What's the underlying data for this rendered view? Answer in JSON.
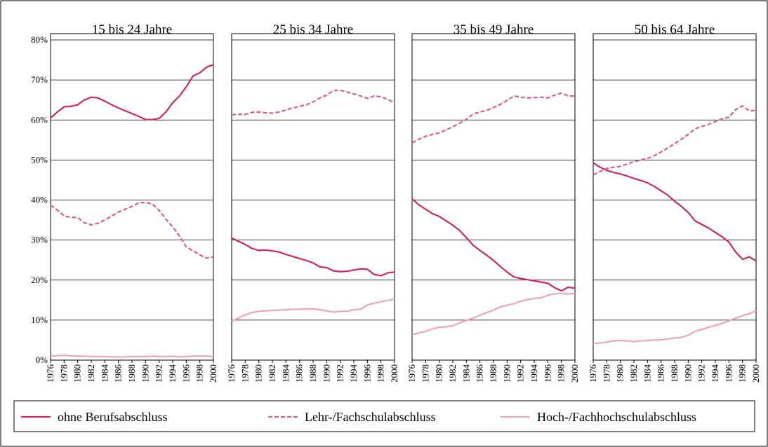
{
  "chart_data": [
    {
      "type": "line",
      "title": "15 bis 24 Jahre",
      "x": [
        1976,
        1977,
        1978,
        1979,
        1980,
        1981,
        1982,
        1983,
        1984,
        1985,
        1986,
        1987,
        1988,
        1989,
        1990,
        1991,
        1992,
        1993,
        1994,
        1995,
        1996,
        1997,
        1998,
        1999,
        2000
      ],
      "xlim": [
        1976,
        2000
      ],
      "xticks": [
        1976,
        1978,
        1980,
        1982,
        1984,
        1986,
        1988,
        1990,
        1992,
        1994,
        1996,
        1998,
        2000
      ],
      "ylim": [
        0,
        80
      ],
      "yticks": [
        {
          "value": 0,
          "label": "0%"
        },
        {
          "value": 10,
          "label": "10%"
        },
        {
          "value": 20,
          "label": "20%"
        },
        {
          "value": 30,
          "label": "30%"
        },
        {
          "value": 40,
          "label": "40%"
        },
        {
          "value": 50,
          "label": "50%"
        },
        {
          "value": 60,
          "label": "60%"
        },
        {
          "value": 70,
          "label": "70%"
        },
        {
          "value": 80,
          "label": "80%"
        }
      ],
      "grid": true,
      "legend": "bottom",
      "series": [
        {
          "name": "ohne Berufsabschluss",
          "color": "#c8286a",
          "dash": false,
          "values": [
            60.5,
            62,
            63.3,
            63.4,
            63.8,
            65,
            65.7,
            65.5,
            64.7,
            63.8,
            63,
            62.3,
            61.6,
            60.9,
            60.1,
            60.1,
            60.4,
            62,
            64.3,
            66,
            68.3,
            71,
            71.8,
            73.2,
            73.8
          ]
        },
        {
          "name": "Lehr-/Fachschulabschluss",
          "color": "#d55f92",
          "dash": true,
          "values": [
            38.7,
            37.5,
            36,
            35.7,
            35.6,
            34.3,
            33.8,
            34.2,
            35,
            36,
            37,
            37.7,
            38.4,
            39.3,
            39.4,
            39,
            37.4,
            35.2,
            33.3,
            31,
            28.3,
            27.3,
            26.3,
            25.5,
            25.8
          ]
        },
        {
          "name": "Hoch-/Fachhochschulabschluss",
          "color": "#eea3c3",
          "dash": false,
          "values": [
            1.0,
            1.1,
            1.2,
            1.1,
            1.0,
            1.0,
            0.9,
            0.9,
            0.9,
            0.8,
            0.8,
            0.8,
            0.9,
            0.9,
            0.9,
            1.0,
            0.9,
            0.9,
            1.0,
            0.8,
            0.9,
            1.0,
            1.0,
            1.0,
            0.9
          ]
        }
      ]
    },
    {
      "type": "line",
      "title": "25 bis 34 Jahre",
      "x": [
        1976,
        1977,
        1978,
        1979,
        1980,
        1981,
        1982,
        1983,
        1984,
        1985,
        1986,
        1987,
        1988,
        1989,
        1990,
        1991,
        1992,
        1993,
        1994,
        1995,
        1996,
        1997,
        1998,
        1999,
        2000
      ],
      "xlim": [
        1976,
        2000
      ],
      "xticks": [
        1976,
        1978,
        1980,
        1982,
        1984,
        1986,
        1988,
        1990,
        1992,
        1994,
        1996,
        1998,
        2000
      ],
      "ylim": [
        0,
        80
      ],
      "series": [
        {
          "color": "#c8286a",
          "dash": false,
          "values": [
            30.5,
            29.7,
            28.9,
            27.9,
            27.4,
            27.5,
            27.3,
            27,
            26.4,
            25.9,
            25.4,
            24.9,
            24.3,
            23.3,
            23.1,
            22.3,
            22.1,
            22.2,
            22.5,
            22.8,
            22.7,
            21.4,
            21.1,
            21.8,
            22
          ]
        },
        {
          "color": "#d55f92",
          "dash": true,
          "values": [
            61.3,
            61.4,
            61.4,
            61.9,
            62,
            61.8,
            61.7,
            62,
            62.5,
            63,
            63.4,
            63.8,
            64.5,
            65.5,
            66.2,
            67.4,
            67.4,
            67,
            66.5,
            66,
            65.4,
            66,
            65.8,
            65.1,
            64.4
          ]
        },
        {
          "color": "#eea3c3",
          "dash": false,
          "values": [
            9.7,
            10.5,
            11.3,
            11.9,
            12.2,
            12.3,
            12.4,
            12.5,
            12.6,
            12.7,
            12.7,
            12.8,
            12.8,
            12.6,
            12.3,
            12,
            12.2,
            12.2,
            12.6,
            12.7,
            13.8,
            14.2,
            14.6,
            14.9,
            15.3
          ]
        }
      ]
    },
    {
      "type": "line",
      "title": "35 bis 49 Jahre",
      "x": [
        1976,
        1977,
        1978,
        1979,
        1980,
        1981,
        1982,
        1983,
        1984,
        1985,
        1986,
        1987,
        1988,
        1989,
        1990,
        1991,
        1992,
        1993,
        1994,
        1995,
        1996,
        1997,
        1998,
        1999,
        2000
      ],
      "xlim": [
        1976,
        2000
      ],
      "xticks": [
        1976,
        1978,
        1980,
        1982,
        1984,
        1986,
        1988,
        1990,
        1992,
        1994,
        1996,
        1998,
        2000
      ],
      "ylim": [
        0,
        80
      ],
      "series": [
        {
          "color": "#c8286a",
          "dash": false,
          "values": [
            40.3,
            38.8,
            37.7,
            36.6,
            35.9,
            34.8,
            33.7,
            32.4,
            30.6,
            28.7,
            27.4,
            26.2,
            24.9,
            23.4,
            22,
            20.8,
            20.4,
            20.1,
            19.8,
            19.5,
            19.2,
            18.1,
            17.3,
            18.2,
            18
          ]
        },
        {
          "color": "#d55f92",
          "dash": true,
          "values": [
            54.3,
            55.2,
            55.9,
            56.4,
            56.8,
            57.5,
            58.3,
            59.2,
            60.2,
            61.5,
            62,
            62.4,
            63.1,
            63.9,
            64.9,
            66,
            65.7,
            65.5,
            65.6,
            65.7,
            65.5,
            66.2,
            66.7,
            66,
            66
          ]
        },
        {
          "color": "#eea3c3",
          "dash": false,
          "values": [
            6.3,
            6.8,
            7.2,
            7.8,
            8.2,
            8.3,
            8.6,
            9.3,
            9.9,
            10.5,
            11.2,
            11.9,
            12.5,
            13.3,
            13.7,
            14.1,
            14.7,
            15.1,
            15.4,
            15.6,
            16.2,
            16.6,
            16.7,
            16.5,
            16.7
          ]
        }
      ]
    },
    {
      "type": "line",
      "title": "50 bis 64 Jahre",
      "x": [
        1976,
        1977,
        1978,
        1979,
        1980,
        1981,
        1982,
        1983,
        1984,
        1985,
        1986,
        1987,
        1988,
        1989,
        1990,
        1991,
        1992,
        1993,
        1994,
        1995,
        1996,
        1997,
        1998,
        1999,
        2000
      ],
      "xlim": [
        1976,
        2000
      ],
      "xticks": [
        1976,
        1978,
        1980,
        1982,
        1984,
        1986,
        1988,
        1990,
        1992,
        1994,
        1996,
        1998,
        2000
      ],
      "ylim": [
        0,
        80
      ],
      "series": [
        {
          "color": "#c8286a",
          "dash": false,
          "values": [
            49.3,
            48.2,
            47.4,
            46.9,
            46.5,
            46,
            45.4,
            44.9,
            44.3,
            43.4,
            42.3,
            41.2,
            39.7,
            38.4,
            36.9,
            34.8,
            33.9,
            33,
            31.9,
            30.8,
            29.5,
            27,
            25.2,
            25.8,
            24.8
          ]
        },
        {
          "color": "#d55f92",
          "dash": true,
          "values": [
            46.3,
            47.1,
            47.9,
            48.2,
            48.4,
            49,
            49.6,
            50,
            50.4,
            51.1,
            52,
            53,
            54.1,
            55.2,
            56.4,
            57.8,
            58.4,
            58.9,
            59.6,
            60.3,
            60.7,
            62.6,
            63.5,
            62.3,
            62.4
          ]
        },
        {
          "color": "#eea3c3",
          "dash": false,
          "values": [
            4.1,
            4.3,
            4.5,
            4.8,
            4.9,
            4.8,
            4.6,
            4.8,
            4.9,
            5.0,
            5.1,
            5.3,
            5.5,
            5.7,
            6.2,
            7.2,
            7.7,
            8.2,
            8.7,
            9.2,
            9.8,
            10.5,
            11.1,
            11.6,
            12.3
          ]
        }
      ]
    }
  ]
}
